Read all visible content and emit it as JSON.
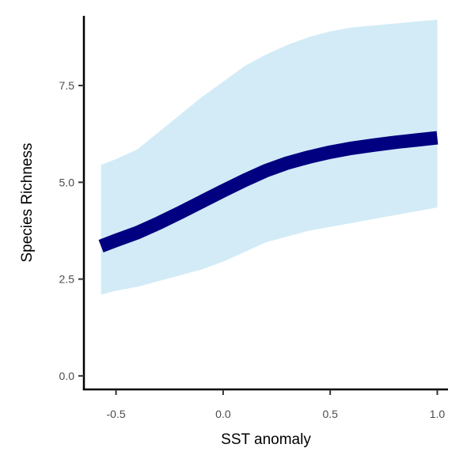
{
  "chart_data": {
    "type": "line",
    "xlabel": "SST anomaly",
    "ylabel": "Species Richness",
    "xlim": [
      -0.65,
      1.05
    ],
    "ylim": [
      -0.35,
      9.3
    ],
    "x_ticks": [
      -0.5,
      0.0,
      0.5,
      1.0
    ],
    "x_tick_labels": [
      "-0.5",
      "0.0",
      "0.5",
      "1.0"
    ],
    "y_ticks": [
      0.0,
      2.5,
      5.0,
      7.5
    ],
    "y_tick_labels": [
      "0.0",
      "2.5",
      "5.0",
      "7.5"
    ],
    "grid": false,
    "series": [
      {
        "role": "fit",
        "color": "#000080",
        "x": [
          -0.57,
          -0.5,
          -0.4,
          -0.3,
          -0.2,
          -0.1,
          0.0,
          0.1,
          0.2,
          0.3,
          0.4,
          0.5,
          0.6,
          0.7,
          0.8,
          0.9,
          1.0
        ],
        "y": [
          3.35,
          3.5,
          3.7,
          3.95,
          4.22,
          4.5,
          4.78,
          5.05,
          5.3,
          5.5,
          5.65,
          5.78,
          5.88,
          5.96,
          6.03,
          6.09,
          6.15
        ]
      },
      {
        "role": "confidence-band",
        "color": "#d2ebf7",
        "x": [
          -0.57,
          -0.5,
          -0.4,
          -0.3,
          -0.2,
          -0.1,
          0.0,
          0.1,
          0.2,
          0.3,
          0.4,
          0.5,
          0.6,
          0.7,
          0.8,
          0.9,
          1.0
        ],
        "lower": [
          2.1,
          2.2,
          2.3,
          2.45,
          2.6,
          2.75,
          2.95,
          3.2,
          3.45,
          3.6,
          3.75,
          3.85,
          3.95,
          4.05,
          4.15,
          4.25,
          4.35
        ],
        "upper": [
          5.45,
          5.6,
          5.85,
          6.3,
          6.75,
          7.2,
          7.6,
          8.0,
          8.3,
          8.55,
          8.75,
          8.9,
          9.0,
          9.05,
          9.1,
          9.15,
          9.2
        ]
      }
    ]
  }
}
